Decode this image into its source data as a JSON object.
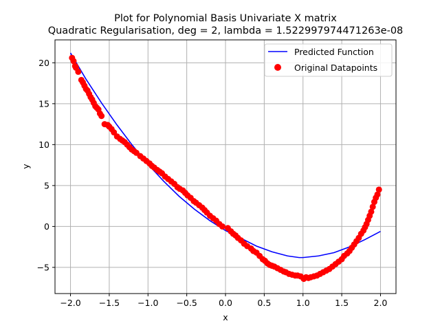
{
  "chart_data": {
    "type": "scatter",
    "title": "Plot for Polynomial Basis Univariate X matrix",
    "subtitle": "Quadratic Regularisation, deg = 2, lambda = 1.522997974471263e-08",
    "xlabel": "x",
    "ylabel": "y",
    "xlim": [
      -2.2,
      2.2
    ],
    "ylim": [
      -8.2,
      22.8
    ],
    "xticks": [
      -2.0,
      -1.5,
      -1.0,
      -0.5,
      0.0,
      0.5,
      1.0,
      1.5,
      2.0
    ],
    "xtick_labels": [
      "−2.0",
      "−1.5",
      "−1.0",
      "−0.5",
      "0.0",
      "0.5",
      "1.0",
      "1.5",
      "2.0"
    ],
    "yticks": [
      -5,
      0,
      5,
      10,
      15,
      20
    ],
    "ytick_labels": [
      "−5",
      "0",
      "5",
      "10",
      "15",
      "20"
    ],
    "grid": true,
    "legend_position": "top-right",
    "series": [
      {
        "name": "Predicted Function",
        "kind": "line",
        "color": "#0000ff",
        "x": [
          -2.0,
          -1.8,
          -1.6,
          -1.4,
          -1.2,
          -1.0,
          -0.8,
          -0.6,
          -0.4,
          -0.2,
          0.0,
          0.2,
          0.4,
          0.6,
          0.8,
          0.95,
          1.0,
          1.2,
          1.4,
          1.6,
          1.8,
          2.0
        ],
        "y": [
          21.2,
          18.0,
          15.1,
          12.4,
          9.9,
          7.6,
          5.55,
          3.7,
          2.1,
          0.7,
          -0.5,
          -1.45,
          -2.4,
          -3.1,
          -3.6,
          -3.8,
          -3.8,
          -3.6,
          -3.2,
          -2.5,
          -1.6,
          -0.6
        ]
      },
      {
        "name": "Original Datapoints",
        "kind": "scatter",
        "color": "#ff0000",
        "x": [
          -1.98,
          -1.96,
          -1.94,
          -1.93,
          -1.9,
          -1.86,
          -1.84,
          -1.82,
          -1.8,
          -1.78,
          -1.76,
          -1.74,
          -1.72,
          -1.7,
          -1.68,
          -1.66,
          -1.64,
          -1.62,
          -1.6,
          -1.56,
          -1.52,
          -1.5,
          -1.47,
          -1.44,
          -1.4,
          -1.36,
          -1.33,
          -1.3,
          -1.27,
          -1.24,
          -1.21,
          -1.18,
          -1.15,
          -1.1,
          -1.06,
          -1.02,
          -0.98,
          -0.95,
          -0.92,
          -0.88,
          -0.85,
          -0.82,
          -0.78,
          -0.74,
          -0.7,
          -0.66,
          -0.62,
          -0.59,
          -0.55,
          -0.52,
          -0.49,
          -0.45,
          -0.41,
          -0.38,
          -0.34,
          -0.3,
          -0.27,
          -0.24,
          -0.2,
          -0.16,
          -0.12,
          -0.08,
          -0.04,
          0.03,
          0.07,
          0.1,
          0.13,
          0.16,
          0.2,
          0.24,
          0.28,
          0.33,
          0.36,
          0.4,
          0.44,
          0.48,
          0.51,
          0.54,
          0.57,
          0.6,
          0.63,
          0.67,
          0.71,
          0.75,
          0.78,
          0.82,
          0.86,
          0.9,
          0.93,
          0.97,
          1.01,
          1.04,
          1.07,
          1.1,
          1.14,
          1.18,
          1.22,
          1.26,
          1.3,
          1.34,
          1.38,
          1.42,
          1.46,
          1.5,
          1.53,
          1.57,
          1.6,
          1.63,
          1.66,
          1.69,
          1.72,
          1.75,
          1.78,
          1.8,
          1.82,
          1.84,
          1.86,
          1.88,
          1.9,
          1.92,
          1.94,
          1.96,
          1.98
        ],
        "y": [
          20.6,
          20.2,
          19.6,
          19.4,
          18.9,
          17.9,
          17.6,
          17.2,
          16.8,
          16.6,
          16.2,
          15.8,
          15.5,
          15.1,
          14.7,
          14.5,
          14.3,
          13.8,
          13.5,
          12.5,
          12.4,
          12.2,
          11.9,
          11.5,
          11.0,
          10.7,
          10.5,
          10.3,
          10.0,
          9.7,
          9.4,
          9.2,
          9.0,
          8.6,
          8.3,
          8.0,
          7.7,
          7.4,
          7.2,
          6.9,
          6.7,
          6.5,
          6.1,
          5.8,
          5.5,
          5.2,
          4.8,
          4.6,
          4.4,
          4.1,
          3.8,
          3.5,
          3.1,
          2.9,
          2.6,
          2.3,
          2.0,
          1.7,
          1.3,
          1.0,
          0.7,
          0.3,
          0.0,
          -0.2,
          -0.6,
          -0.9,
          -1.1,
          -1.4,
          -1.7,
          -2.1,
          -2.4,
          -2.7,
          -3.0,
          -3.2,
          -3.6,
          -4.0,
          -4.2,
          -4.5,
          -4.7,
          -4.8,
          -4.9,
          -5.1,
          -5.3,
          -5.5,
          -5.6,
          -5.8,
          -5.9,
          -6.0,
          -6.0,
          -6.1,
          -6.4,
          -6.2,
          -6.3,
          -6.2,
          -6.1,
          -6.0,
          -5.8,
          -5.6,
          -5.4,
          -5.2,
          -4.9,
          -4.6,
          -4.3,
          -4.0,
          -3.6,
          -3.3,
          -3.0,
          -2.6,
          -2.2,
          -1.8,
          -1.4,
          -0.9,
          -0.5,
          -0.1,
          0.3,
          0.8,
          1.3,
          1.8,
          2.4,
          3.0,
          3.5,
          3.9,
          4.5
        ]
      }
    ]
  }
}
